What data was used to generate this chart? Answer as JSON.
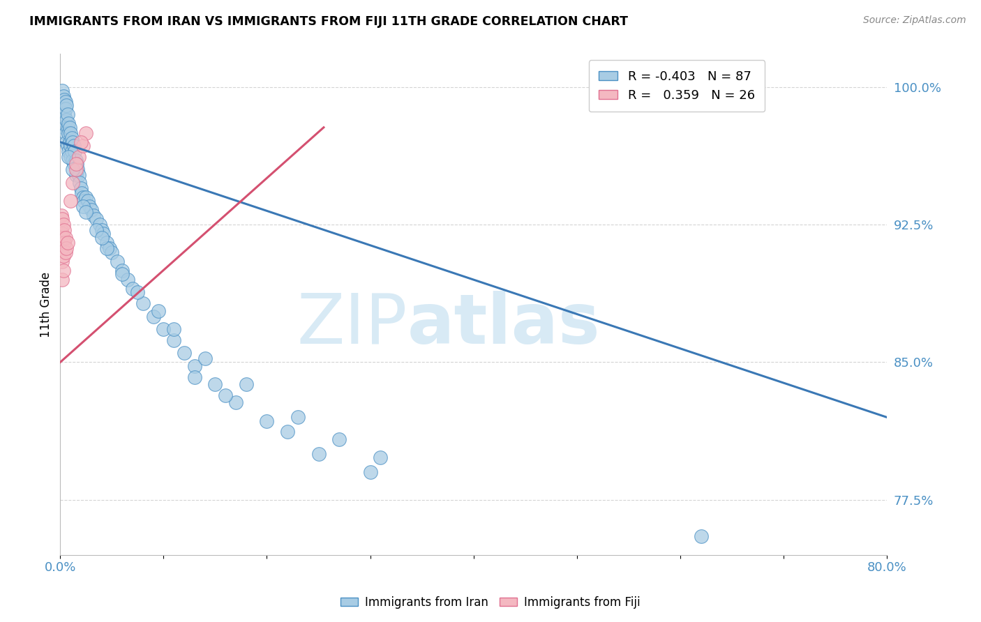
{
  "title": "IMMIGRANTS FROM IRAN VS IMMIGRANTS FROM FIJI 11TH GRADE CORRELATION CHART",
  "source": "Source: ZipAtlas.com",
  "ylabel": "11th Grade",
  "ytick_values": [
    1.0,
    0.925,
    0.85,
    0.775
  ],
  "ytick_labels": [
    "100.0%",
    "92.5%",
    "85.0%",
    "77.5%"
  ],
  "xlim": [
    0.0,
    0.8
  ],
  "ylim": [
    0.745,
    1.018
  ],
  "iran_color": "#a8cce4",
  "fiji_color": "#f4b8c1",
  "iran_edge_color": "#4a90c4",
  "fiji_edge_color": "#e07090",
  "iran_line_color": "#3a78b5",
  "fiji_line_color": "#d45070",
  "watermark_color": "#d8eaf5",
  "legend_iran_R": "-0.403",
  "legend_iran_N": "87",
  "legend_fiji_R": "0.359",
  "legend_fiji_N": "26",
  "iran_points_x": [
    0.002,
    0.003,
    0.003,
    0.004,
    0.004,
    0.004,
    0.005,
    0.005,
    0.005,
    0.006,
    0.006,
    0.006,
    0.007,
    0.007,
    0.007,
    0.008,
    0.008,
    0.008,
    0.009,
    0.009,
    0.01,
    0.01,
    0.01,
    0.011,
    0.011,
    0.012,
    0.012,
    0.013,
    0.013,
    0.014,
    0.015,
    0.015,
    0.016,
    0.017,
    0.018,
    0.019,
    0.02,
    0.021,
    0.022,
    0.023,
    0.025,
    0.027,
    0.028,
    0.03,
    0.032,
    0.035,
    0.038,
    0.04,
    0.042,
    0.045,
    0.048,
    0.05,
    0.055,
    0.06,
    0.065,
    0.07,
    0.08,
    0.09,
    0.1,
    0.11,
    0.12,
    0.13,
    0.15,
    0.17,
    0.2,
    0.22,
    0.25,
    0.3,
    0.13,
    0.16,
    0.022,
    0.035,
    0.045,
    0.06,
    0.075,
    0.095,
    0.11,
    0.14,
    0.18,
    0.23,
    0.27,
    0.31,
    0.62,
    0.008,
    0.012,
    0.025,
    0.04
  ],
  "iran_points_y": [
    0.998,
    0.995,
    0.988,
    0.993,
    0.985,
    0.978,
    0.992,
    0.988,
    0.975,
    0.99,
    0.982,
    0.97,
    0.985,
    0.978,
    0.968,
    0.98,
    0.975,
    0.965,
    0.978,
    0.97,
    0.975,
    0.968,
    0.962,
    0.972,
    0.965,
    0.97,
    0.96,
    0.968,
    0.958,
    0.965,
    0.96,
    0.952,
    0.958,
    0.955,
    0.952,
    0.948,
    0.945,
    0.942,
    0.94,
    0.938,
    0.94,
    0.938,
    0.935,
    0.933,
    0.93,
    0.928,
    0.925,
    0.922,
    0.92,
    0.915,
    0.912,
    0.91,
    0.905,
    0.9,
    0.895,
    0.89,
    0.882,
    0.875,
    0.868,
    0.862,
    0.855,
    0.848,
    0.838,
    0.828,
    0.818,
    0.812,
    0.8,
    0.79,
    0.842,
    0.832,
    0.935,
    0.922,
    0.912,
    0.898,
    0.888,
    0.878,
    0.868,
    0.852,
    0.838,
    0.82,
    0.808,
    0.798,
    0.755,
    0.962,
    0.955,
    0.932,
    0.918
  ],
  "fiji_points_x": [
    0.001,
    0.001,
    0.001,
    0.002,
    0.002,
    0.002,
    0.002,
    0.002,
    0.003,
    0.003,
    0.003,
    0.003,
    0.004,
    0.004,
    0.005,
    0.005,
    0.006,
    0.007,
    0.01,
    0.012,
    0.015,
    0.018,
    0.022,
    0.025,
    0.02,
    0.015
  ],
  "fiji_points_y": [
    0.93,
    0.922,
    0.915,
    0.928,
    0.92,
    0.912,
    0.905,
    0.895,
    0.925,
    0.918,
    0.908,
    0.9,
    0.922,
    0.915,
    0.918,
    0.91,
    0.912,
    0.915,
    0.938,
    0.948,
    0.955,
    0.962,
    0.968,
    0.975,
    0.97,
    0.958
  ],
  "iran_line_x": [
    0.0,
    0.8
  ],
  "iran_line_y": [
    0.97,
    0.82
  ],
  "fiji_line_x": [
    0.0,
    0.255
  ],
  "fiji_line_y": [
    0.85,
    0.978
  ],
  "grid_color": "#d0d0d0",
  "background_color": "#ffffff",
  "title_fontsize": 12.5,
  "tick_label_color": "#4a90c4",
  "source_color": "#888888"
}
